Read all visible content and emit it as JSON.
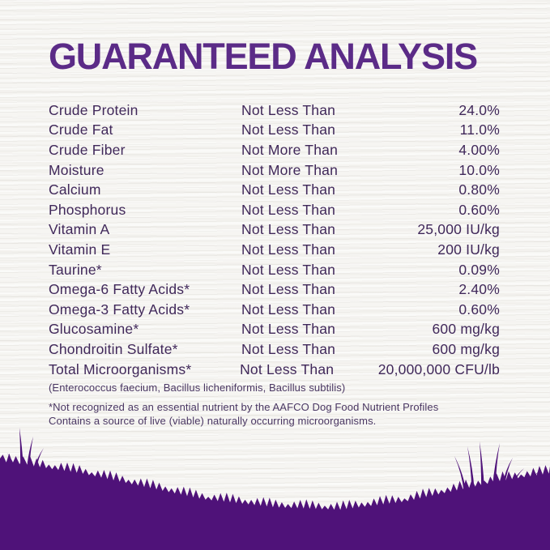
{
  "title": "GUARANTEED ANALYSIS",
  "colors": {
    "title_purple": "#5B2B87",
    "text_purple": "#40285A",
    "footnote_purple": "#4A3763",
    "silhouette_purple": "#4F1279",
    "background": "#F6F5F2"
  },
  "table": {
    "rows": [
      {
        "nutrient": "Crude Protein",
        "condition": "Not Less Than",
        "value": "24.0%"
      },
      {
        "nutrient": "Crude Fat",
        "condition": "Not Less Than",
        "value": "11.0%"
      },
      {
        "nutrient": "Crude Fiber",
        "condition": "Not More Than",
        "value": "4.00%"
      },
      {
        "nutrient": "Moisture",
        "condition": "Not More Than",
        "value": "10.0%"
      },
      {
        "nutrient": "Calcium",
        "condition": "Not Less Than",
        "value": "0.80%"
      },
      {
        "nutrient": "Phosphorus",
        "condition": "Not Less Than",
        "value": "0.60%"
      },
      {
        "nutrient": "Vitamin A",
        "condition": "Not Less Than",
        "value": "25,000 IU/kg"
      },
      {
        "nutrient": "Vitamin E",
        "condition": "Not Less Than",
        "value": "200 IU/kg"
      },
      {
        "nutrient": "Taurine*",
        "condition": "Not Less Than",
        "value": "0.09%"
      },
      {
        "nutrient": "Omega-6 Fatty Acids*",
        "condition": "Not Less Than",
        "value": "2.40%"
      },
      {
        "nutrient": "Omega-3 Fatty Acids*",
        "condition": "Not Less Than",
        "value": "0.60%"
      },
      {
        "nutrient": "Glucosamine*",
        "condition": "Not Less Than",
        "value": "600 mg/kg"
      },
      {
        "nutrient": "Chondroitin Sulfate*",
        "condition": "Not Less Than",
        "value": "600 mg/kg"
      },
      {
        "nutrient": "Total Microorganisms*",
        "condition": "Not Less Than",
        "value": "20,000,000 CFU/lb"
      }
    ]
  },
  "notes": {
    "microorganisms_detail": "(Enterococcus faecium, Bacillus licheniformis, Bacillus subtilis)",
    "footnote_line1": "*Not recognized as an essential nutrient by the AAFCO Dog Food Nutrient Profiles",
    "footnote_line2": "Contains a source of live (viable) naturally occurring microorganisms."
  }
}
